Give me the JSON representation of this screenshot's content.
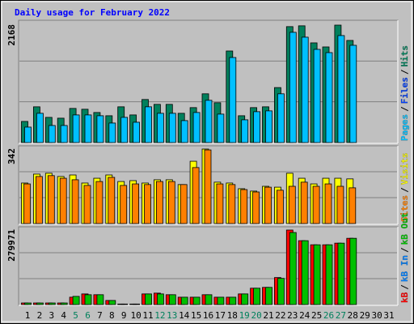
{
  "chart_data": {
    "type": "bar",
    "title": "Daily usage for February 2022",
    "categories": [
      "1",
      "2",
      "3",
      "4",
      "5",
      "6",
      "7",
      "8",
      "9",
      "10",
      "11",
      "12",
      "13",
      "14",
      "15",
      "16",
      "17",
      "18",
      "19",
      "20",
      "21",
      "22",
      "23",
      "24",
      "25",
      "26",
      "27",
      "28",
      "29",
      "30",
      "31"
    ],
    "category_colors": [
      "#000000",
      "#000000",
      "#000000",
      "#000000",
      "#00805c",
      "#00805c",
      "#000000",
      "#000000",
      "#000000",
      "#000000",
      "#000000",
      "#00805c",
      "#00805c",
      "#000000",
      "#000000",
      "#000000",
      "#000000",
      "#000000",
      "#00805c",
      "#00805c",
      "#000000",
      "#000000",
      "#000000",
      "#000000",
      "#000000",
      "#00805c",
      "#00805c",
      "#000000",
      "#000000",
      "#000000",
      "#000000"
    ],
    "legend_separator": "/",
    "panels": [
      {
        "ylim": [
          0,
          2168
        ],
        "yticks": [
          2168
        ],
        "legend_reverse": true,
        "series": [
          {
            "name": "Hits",
            "color": "#00805c",
            "values": [
              390,
              660,
              465,
              450,
              630,
              615,
              555,
              495,
              660,
              510,
              795,
              705,
              705,
              540,
              645,
              900,
              735,
              1690,
              495,
              645,
              660,
              1015,
              2140,
              2155,
              1840,
              1765,
              2168,
              1885,
              null,
              null,
              null
            ]
          },
          {
            "name": "Files",
            "color": "#0040ff",
            "values": [
              null,
              null,
              null,
              null,
              null,
              null,
              null,
              null,
              null,
              null,
              null,
              null,
              null,
              null,
              null,
              null,
              null,
              null,
              null,
              null,
              null,
              null,
              null,
              null,
              null,
              null,
              null,
              null,
              null,
              null,
              null
            ]
          },
          {
            "name": "Pages",
            "color": "#00c0ff",
            "values": [
              285,
              540,
              315,
              315,
              510,
              510,
              495,
              360,
              465,
              375,
              660,
              540,
              540,
              405,
              555,
              780,
              525,
              1570,
              420,
              570,
              585,
              900,
              2035,
              1945,
              1720,
              1660,
              1975,
              1795,
              null,
              null,
              null
            ]
          }
        ]
      },
      {
        "ylim": [
          0,
          342
        ],
        "yticks": [
          342
        ],
        "legend_reverse": true,
        "series": [
          {
            "name": "Visits",
            "color": "#ffff00",
            "values": [
              186,
              227,
              231,
              216,
              223,
              186,
              208,
              223,
              193,
              197,
              186,
              201,
              201,
              179,
              286,
              342,
              190,
              186,
              160,
              149,
              171,
              167,
              231,
              208,
              182,
              208,
              208,
              205,
              null,
              null,
              null
            ]
          },
          {
            "name": "Sites",
            "color": "#ff8000",
            "values": [
              182,
              216,
              220,
              208,
              201,
              175,
              193,
              212,
              175,
              182,
              179,
              193,
              193,
              179,
              257,
              338,
              182,
              179,
              156,
              145,
              167,
              153,
              171,
              190,
              171,
              182,
              171,
              164,
              null,
              null,
              null
            ]
          }
        ]
      },
      {
        "ylim": [
          0,
          279971
        ],
        "yticks": [
          279971
        ],
        "legend_reverse": false,
        "series": [
          {
            "name": "kB",
            "color": "#ff0000",
            "values": [
              6000,
              6000,
              6000,
              6000,
              27700,
              40000,
              37000,
              15400,
              2000,
              2000,
              40000,
              43000,
              37000,
              27700,
              27700,
              37000,
              27700,
              27700,
              40000,
              61500,
              64600,
              101500,
              279971,
              240000,
              224600,
              224600,
              230800,
              249000,
              null,
              null,
              null
            ]
          },
          {
            "name": "kB In",
            "color": "#0080ff",
            "values": [
              null,
              null,
              null,
              null,
              null,
              null,
              null,
              null,
              null,
              null,
              null,
              null,
              null,
              null,
              null,
              null,
              null,
              null,
              null,
              null,
              null,
              null,
              null,
              null,
              null,
              null,
              null,
              null,
              null,
              null,
              null
            ]
          },
          {
            "name": "kB Out",
            "color": "#00c000",
            "values": [
              6000,
              6000,
              6000,
              6000,
              30800,
              37000,
              37000,
              15400,
              2000,
              2000,
              40000,
              40000,
              37000,
              27700,
              27700,
              37000,
              27700,
              27700,
              40000,
              61500,
              64600,
              98500,
              270700,
              240000,
              224600,
              224600,
              230800,
              249000,
              null,
              null,
              null
            ]
          }
        ]
      }
    ]
  }
}
